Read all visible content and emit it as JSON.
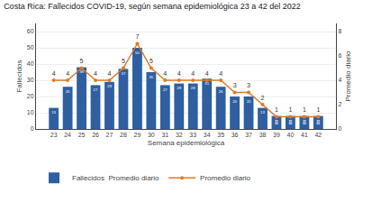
{
  "chart_data": {
    "type": "bar",
    "title": "Costa Rica: Fallecidos COVID-19, según semana epidemiológica 23 a 42 del 2022",
    "xlabel": "Semana epidemiológica",
    "ylabel": "Fallecidos",
    "y2label": "Promedio diario",
    "categories": [
      23,
      24,
      25,
      26,
      27,
      28,
      29,
      30,
      31,
      32,
      33,
      34,
      35,
      36,
      37,
      38,
      39,
      40,
      41,
      42
    ],
    "series": [
      {
        "name": "Fallecidos  Promedio diario",
        "type": "bar",
        "color": "#2E5FA3",
        "values": [
          13,
          26,
          38,
          27,
          29,
          37,
          50,
          35,
          27,
          28,
          28,
          31,
          26,
          20,
          20,
          13,
          8,
          8,
          8,
          8
        ]
      },
      {
        "name": "Promedio diario",
        "type": "line",
        "axis": "y2",
        "color": "#E07B20",
        "marker": "circle",
        "values": [
          4,
          4,
          5,
          4,
          4,
          5,
          7,
          5,
          4,
          4,
          4,
          4,
          4,
          3,
          3,
          2,
          1,
          1,
          1,
          1
        ]
      }
    ],
    "ylim": [
      0,
      65
    ],
    "yticks": [
      0,
      10,
      20,
      30,
      40,
      50,
      60
    ],
    "y2lim": [
      0,
      8.667
    ],
    "y2ticks": [
      0,
      2,
      4,
      6,
      8
    ],
    "grid": true,
    "legend": "lower left",
    "data_labels": true
  }
}
